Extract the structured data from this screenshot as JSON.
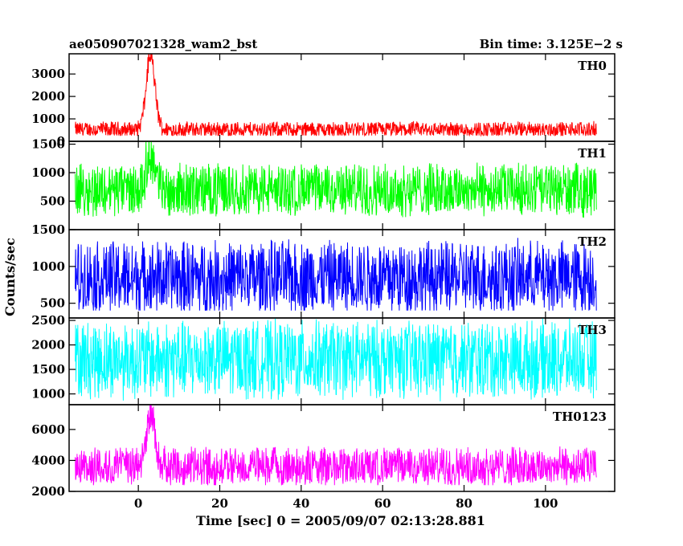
{
  "header": {
    "left_title": "ae050907021328_wam2_bst",
    "right_title": "Bin time: 3.125E−2 s"
  },
  "chart_data": {
    "type": "line",
    "xlabel": "Time [sec] 0 = 2005/09/07 02:13:28.881",
    "ylabel": "Counts/sec",
    "xlim": [
      -17,
      117
    ],
    "x_ticks": [
      0,
      20,
      40,
      60,
      80,
      100
    ],
    "data_x_range": [
      -15.5,
      112.5
    ],
    "panels": [
      {
        "name": "TH0",
        "color": "#ff0000",
        "ylim": [
          0,
          3900
        ],
        "y_ticks": [
          0,
          1000,
          2000,
          3000
        ],
        "y_tick_labels": [
          "0",
          "1000",
          "2000",
          "3000"
        ],
        "baseline": 520,
        "noise_range": [
          260,
          1000
        ],
        "peaks": [
          {
            "x": 3.0,
            "y": 4100
          }
        ]
      },
      {
        "name": "TH1",
        "color": "#00ff00",
        "ylim": [
          0,
          1550
        ],
        "y_ticks": [
          500,
          1000,
          1500
        ],
        "y_tick_labels": [
          "500",
          "1000",
          "1500"
        ],
        "baseline": 700,
        "noise_range": [
          150,
          1100
        ],
        "peaks": [
          {
            "x": 3.0,
            "y": 1400
          }
        ]
      },
      {
        "name": "TH2",
        "color": "#0000ff",
        "ylim": [
          300,
          1500
        ],
        "y_ticks": [
          500,
          1000,
          1500
        ],
        "y_tick_labels": [
          "500",
          "1000",
          "1500"
        ],
        "baseline": 850,
        "noise_range": [
          400,
          1430
        ],
        "peaks": []
      },
      {
        "name": "TH3",
        "color": "#00ffff",
        "ylim": [
          780,
          2550
        ],
        "y_ticks": [
          1000,
          1500,
          2000,
          2500
        ],
        "y_tick_labels": [
          "1000",
          "1500",
          "2000",
          "2500"
        ],
        "baseline": 1700,
        "noise_range": [
          850,
          2480
        ],
        "peaks": []
      },
      {
        "name": "TH0123",
        "color": "#ff00ff",
        "ylim": [
          2000,
          7600
        ],
        "y_ticks": [
          2000,
          4000,
          6000
        ],
        "y_tick_labels": [
          "2000",
          "4000",
          "6000"
        ],
        "baseline": 3600,
        "noise_range": [
          2400,
          5000
        ],
        "peaks": [
          {
            "x": 3.0,
            "y": 7400
          }
        ]
      }
    ]
  }
}
